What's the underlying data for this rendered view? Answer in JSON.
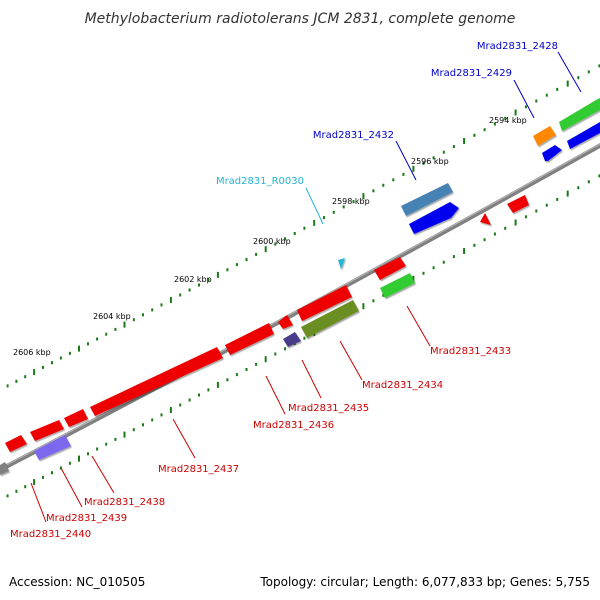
{
  "title": "Methylobacterium radiotolerans JCM 2831, complete genome",
  "footer": {
    "accession": "Accession: NC_010505",
    "summary": "Topology: circular; Length: 6,077,833 bp; Genes: 5,755"
  },
  "colors": {
    "backbone": "#808080",
    "tick": "#1a7a1a",
    "label_forward": "#0000c8",
    "label_reverse": "#cc0000",
    "label_rna": "#22b5d5"
  },
  "scale_ticks": [
    "2594 kbp",
    "2596 kbp",
    "2598 kbp",
    "2600 kbp",
    "2602 kbp",
    "2604 kbp",
    "2606 kbp"
  ],
  "gene_labels": [
    {
      "text": "Mrad2831_2428",
      "strand": "forward"
    },
    {
      "text": "Mrad2831_2429",
      "strand": "forward"
    },
    {
      "text": "Mrad2831_2432",
      "strand": "forward"
    },
    {
      "text": "Mrad2831_R0030",
      "strand": "rna"
    },
    {
      "text": "Mrad2831_2433",
      "strand": "reverse"
    },
    {
      "text": "Mrad2831_2434",
      "strand": "reverse"
    },
    {
      "text": "Mrad2831_2435",
      "strand": "reverse"
    },
    {
      "text": "Mrad2831_2436",
      "strand": "reverse"
    },
    {
      "text": "Mrad2831_2437",
      "strand": "reverse"
    },
    {
      "text": "Mrad2831_2438",
      "strand": "reverse"
    },
    {
      "text": "Mrad2831_2439",
      "strand": "reverse"
    },
    {
      "text": "Mrad2831_2440",
      "strand": "reverse"
    }
  ],
  "features": [
    {
      "name": "gene-2428",
      "color": "#33cc33"
    },
    {
      "name": "gene-2428-blue",
      "color": "#0000ee"
    },
    {
      "name": "gene-2429",
      "color": "#ff8800"
    },
    {
      "name": "gene-2429-blue",
      "color": "#0000ee"
    },
    {
      "name": "gene-2432",
      "color": "#4682b4"
    },
    {
      "name": "gene-2432-blue",
      "color": "#0000ee"
    },
    {
      "name": "gene-red-a",
      "color": "#ee0000"
    },
    {
      "name": "gene-red-b",
      "color": "#ee0000"
    },
    {
      "name": "gene-R0030",
      "color": "#22b5d5"
    },
    {
      "name": "gene-2433-red",
      "color": "#ee0000"
    },
    {
      "name": "gene-2433",
      "color": "#33cc33"
    },
    {
      "name": "gene-2434-red",
      "color": "#ee0000"
    },
    {
      "name": "gene-2434",
      "color": "#6b8e23"
    },
    {
      "name": "gene-2435-red",
      "color": "#ee0000"
    },
    {
      "name": "gene-2435",
      "color": "#483d8b"
    },
    {
      "name": "gene-2436",
      "color": "#ee0000"
    },
    {
      "name": "gene-2437",
      "color": "#ee0000"
    },
    {
      "name": "gene-2438",
      "color": "#ee0000"
    },
    {
      "name": "gene-2439-red",
      "color": "#ee0000"
    },
    {
      "name": "gene-2439",
      "color": "#7b68ee"
    },
    {
      "name": "gene-2440-red",
      "color": "#ee0000"
    },
    {
      "name": "gene-2440",
      "color": "#808080"
    }
  ]
}
